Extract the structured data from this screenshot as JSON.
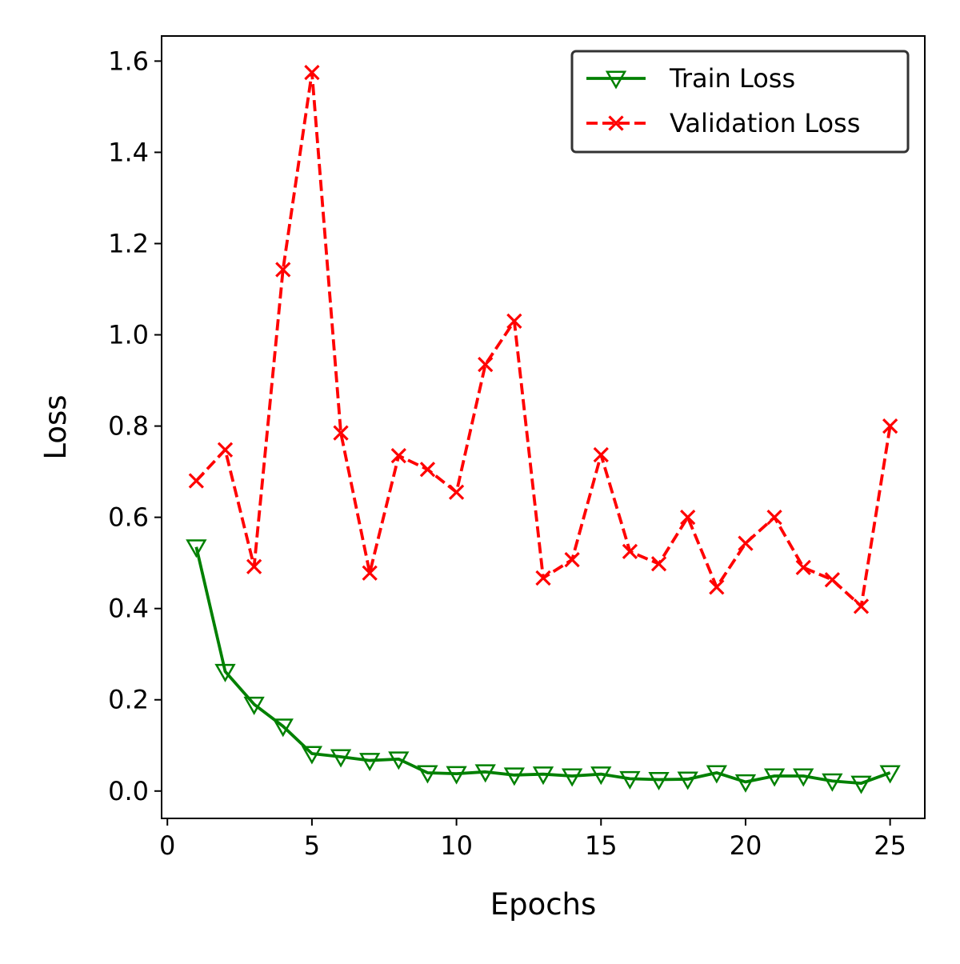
{
  "chart_data": {
    "type": "line",
    "xlabel": "Epochs",
    "ylabel": "Loss",
    "xlim": [
      -0.2,
      26.2
    ],
    "ylim": [
      -0.06,
      1.655
    ],
    "xticks": [
      0,
      5,
      10,
      15,
      20,
      25
    ],
    "yticks": [
      0.0,
      0.2,
      0.4,
      0.6,
      0.8,
      1.0,
      1.2,
      1.4,
      1.6
    ],
    "ytick_format": 1,
    "grid": false,
    "legend_position": "top-right",
    "x": [
      1,
      2,
      3,
      4,
      5,
      6,
      7,
      8,
      9,
      10,
      11,
      12,
      13,
      14,
      15,
      16,
      17,
      18,
      19,
      20,
      21,
      22,
      23,
      24,
      25
    ],
    "series": [
      {
        "name": "Train Loss",
        "color": "#008000",
        "line_style": "solid",
        "marker": "triangle-down",
        "values": [
          0.535,
          0.262,
          0.19,
          0.142,
          0.082,
          0.075,
          0.067,
          0.07,
          0.04,
          0.038,
          0.042,
          0.035,
          0.037,
          0.033,
          0.037,
          0.027,
          0.025,
          0.026,
          0.04,
          0.02,
          0.033,
          0.033,
          0.022,
          0.017,
          0.04
        ]
      },
      {
        "name": "Validation Loss",
        "color": "#ff0000",
        "line_style": "dashed",
        "marker": "x",
        "values": [
          0.68,
          0.748,
          0.492,
          1.143,
          1.575,
          0.785,
          0.478,
          0.735,
          0.705,
          0.655,
          0.935,
          1.03,
          0.467,
          0.507,
          0.737,
          0.525,
          0.498,
          0.6,
          0.447,
          0.543,
          0.6,
          0.49,
          0.463,
          0.405,
          0.8
        ]
      }
    ]
  }
}
